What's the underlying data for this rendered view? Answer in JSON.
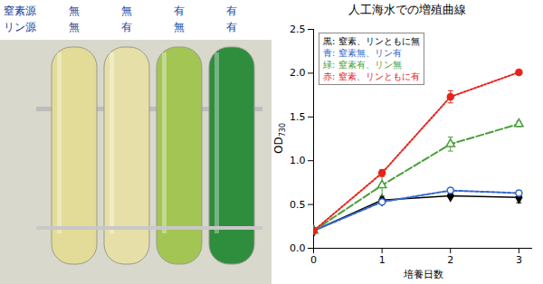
{
  "tubes": {
    "rows": [
      {
        "label": "窒素源",
        "values": [
          "無",
          "無",
          "有",
          "有"
        ]
      },
      {
        "label": "リン源",
        "values": [
          "無",
          "有",
          "無",
          "有"
        ]
      }
    ],
    "colors": [
      "#e3dc98",
      "#e6e0a8",
      "#a3c553",
      "#2f8d3e"
    ]
  },
  "chart_data": {
    "type": "line",
    "title": "人工海水での増殖曲線",
    "x_label": "培養日数",
    "y_label": "OD730",
    "x": [
      0,
      1,
      2,
      3
    ],
    "xlim": [
      0,
      3.2
    ],
    "xticks": [
      0,
      1,
      2,
      3
    ],
    "ylim": [
      0,
      2.5
    ],
    "yticks": [
      {
        "value": 0,
        "label": "0.0"
      },
      {
        "value": 0.5,
        "label": "0.5"
      },
      {
        "value": 1,
        "label": "1.0"
      },
      {
        "value": 1.5,
        "label": "1.5"
      },
      {
        "value": 2,
        "label": "2.0"
      },
      {
        "value": 2.5,
        "label": "2.5"
      }
    ],
    "legend": "top-left",
    "series": [
      {
        "name": "黒: 窒素、リンともに無",
        "color": "#000000",
        "marker": "diamond",
        "line_style": "solid",
        "values": [
          0.2,
          0.55,
          0.6,
          0.58
        ],
        "errors": [
          0.01,
          0.02,
          0.02,
          0.06
        ]
      },
      {
        "name": "青: 窒素無、リン有",
        "color": "#3366cc",
        "marker": "circle-open",
        "line_style": "dashed",
        "values": [
          0.2,
          0.53,
          0.66,
          0.63
        ],
        "errors": [
          0.01,
          0.02,
          0.03,
          0.03
        ]
      },
      {
        "name": "緑: 窒素有、リン無",
        "color": "#4a9e3a",
        "marker": "triangle-open",
        "line_style": "longdash",
        "values": [
          0.2,
          0.72,
          1.19,
          1.42
        ],
        "errors": [
          0.01,
          0.12,
          0.08,
          0.03
        ]
      },
      {
        "name": "赤: 窒素、リンともに有",
        "color": "#e8231a",
        "marker": "circle",
        "line_style": "dotted",
        "values": [
          0.2,
          0.86,
          1.73,
          2.01
        ],
        "errors": [
          0.01,
          0.04,
          0.07,
          0.02
        ]
      }
    ]
  }
}
